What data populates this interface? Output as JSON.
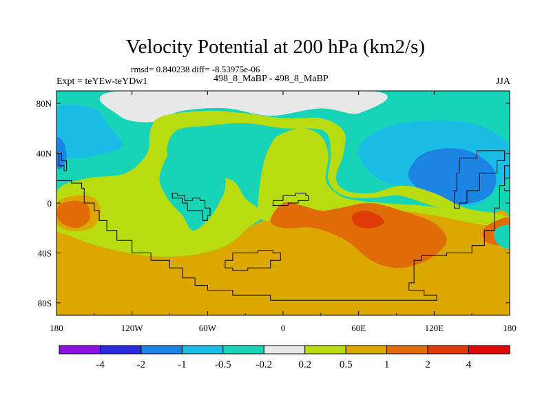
{
  "figure": {
    "title": "Velocity Potential at 200 hPa (km2/s)",
    "stats": "rmsd= 0.840238 diff= -8.53975e-06",
    "experiment": "Expt = teYEw-teYDw1",
    "cases": "498_8_MaBP - 498_8_MaBP",
    "season": "JJA"
  },
  "chart_data": {
    "type": "heatmap",
    "title": "Velocity Potential at 200 hPa (km2/s)",
    "projection": "cylindrical equidistant",
    "xlim": [
      -180,
      180
    ],
    "ylim": [
      -90,
      90
    ],
    "x_ticks": [
      {
        "value": -180,
        "label": "180"
      },
      {
        "value": -120,
        "label": "120W"
      },
      {
        "value": -60,
        "label": "60W"
      },
      {
        "value": 0,
        "label": "0"
      },
      {
        "value": 60,
        "label": "60E"
      },
      {
        "value": 120,
        "label": "120E"
      },
      {
        "value": 180,
        "label": "180"
      }
    ],
    "y_ticks": [
      {
        "value": 80,
        "label": "80N"
      },
      {
        "value": 40,
        "label": "40N"
      },
      {
        "value": 0,
        "label": "0"
      },
      {
        "value": -40,
        "label": "40S"
      },
      {
        "value": -80,
        "label": "80S"
      }
    ],
    "contour_levels": [
      -4,
      -2,
      -1,
      -0.5,
      -0.2,
      0.2,
      0.5,
      1,
      2,
      4
    ],
    "colorbar_labels": [
      "-4",
      "-2",
      "-1",
      "-0.5",
      "-0.2",
      "0.2",
      "0.5",
      "1",
      "2",
      "4"
    ],
    "colorbar_colors": [
      "#8a11e6",
      "#2a2ae0",
      "#1c85e3",
      "#1bbde6",
      "#17d4b8",
      "#e8e8e8",
      "#b8dc10",
      "#dca800",
      "#e06c08",
      "#e03a06",
      "#e00808"
    ],
    "background_level": -0.5,
    "regions": [
      {
        "id": "neg-pole",
        "level": -0.2,
        "points": [
          [
            -130,
            90
          ],
          [
            -130,
            70
          ],
          [
            -105,
            65
          ],
          [
            -80,
            74
          ],
          [
            -45,
            76
          ],
          [
            -10,
            70
          ],
          [
            30,
            76
          ],
          [
            60,
            72
          ],
          [
            70,
            90
          ]
        ]
      },
      {
        "id": "neg-npac",
        "level": -1,
        "points": [
          [
            -180,
            76
          ],
          [
            -150,
            76
          ],
          [
            -140,
            64
          ],
          [
            -128,
            46
          ],
          [
            -150,
            38
          ],
          [
            -170,
            36
          ],
          [
            -180,
            40
          ]
        ]
      },
      {
        "id": "neg-npac-core",
        "level": -2,
        "points": [
          [
            -180,
            52
          ],
          [
            -174,
            48
          ],
          [
            -172,
            36
          ],
          [
            -176,
            28
          ],
          [
            -180,
            30
          ]
        ]
      },
      {
        "id": "neg-asia-outer",
        "level": -0.5,
        "points": [
          [
            48,
            62
          ],
          [
            90,
            70
          ],
          [
            125,
            72
          ],
          [
            165,
            70
          ],
          [
            180,
            60
          ],
          [
            180,
            -6
          ],
          [
            150,
            -14
          ],
          [
            110,
            -4
          ],
          [
            82,
            4
          ],
          [
            62,
            14
          ],
          [
            52,
            34
          ]
        ]
      },
      {
        "id": "neg-asia",
        "level": -1,
        "points": [
          [
            62,
            48
          ],
          [
            85,
            62
          ],
          [
            118,
            66
          ],
          [
            150,
            64
          ],
          [
            172,
            54
          ],
          [
            180,
            44
          ],
          [
            180,
            22
          ],
          [
            168,
            12
          ],
          [
            152,
            -2
          ],
          [
            128,
            2
          ],
          [
            100,
            10
          ],
          [
            75,
            20
          ],
          [
            62,
            34
          ]
        ]
      },
      {
        "id": "neg-asia-core",
        "level": -2,
        "points": [
          [
            102,
            30
          ],
          [
            112,
            40
          ],
          [
            132,
            44
          ],
          [
            152,
            40
          ],
          [
            168,
            26
          ],
          [
            166,
            8
          ],
          [
            150,
            0
          ],
          [
            130,
            0
          ],
          [
            110,
            10
          ],
          [
            100,
            20
          ]
        ]
      },
      {
        "id": "s-hemi",
        "level": 0.5,
        "points": [
          [
            -180,
            -20
          ],
          [
            -180,
            -90
          ],
          [
            180,
            -90
          ],
          [
            180,
            -14
          ],
          [
            165,
            -8
          ],
          [
            150,
            -12
          ],
          [
            118,
            -6
          ],
          [
            80,
            -2
          ],
          [
            50,
            -4
          ],
          [
            30,
            -12
          ],
          [
            0,
            -10
          ],
          [
            -10,
            -12
          ],
          [
            -28,
            -20
          ],
          [
            -45,
            -34
          ],
          [
            -75,
            -42
          ],
          [
            -110,
            -42
          ],
          [
            -145,
            -35
          ],
          [
            -170,
            -26
          ]
        ]
      },
      {
        "id": "white-arc",
        "level": 0.2,
        "points": [
          [
            -155,
            20
          ],
          [
            -125,
            24
          ],
          [
            -108,
            40
          ],
          [
            -105,
            60
          ],
          [
            -95,
            70
          ],
          [
            -60,
            74
          ],
          [
            -30,
            72
          ],
          [
            0,
            68
          ],
          [
            30,
            68
          ],
          [
            48,
            58
          ],
          [
            48,
            40
          ],
          [
            42,
            20
          ],
          [
            50,
            10
          ],
          [
            70,
            8
          ],
          [
            95,
            14
          ],
          [
            120,
            8
          ],
          [
            145,
            -4
          ],
          [
            168,
            -8
          ],
          [
            180,
            -12
          ],
          [
            180,
            -16
          ],
          [
            166,
            -12
          ],
          [
            145,
            -10
          ],
          [
            118,
            -2
          ],
          [
            92,
            6
          ],
          [
            70,
            4
          ],
          [
            48,
            6
          ],
          [
            36,
            18
          ],
          [
            38,
            40
          ],
          [
            32,
            58
          ],
          [
            0,
            60
          ],
          [
            -30,
            64
          ],
          [
            -60,
            62
          ],
          [
            -85,
            58
          ],
          [
            -92,
            40
          ],
          [
            -80,
            24
          ],
          [
            -60,
            22
          ],
          [
            -40,
            18
          ],
          [
            -30,
            4
          ],
          [
            -20,
            -4
          ],
          [
            -15,
            -10
          ],
          [
            -28,
            -20
          ],
          [
            -45,
            -34
          ],
          [
            -75,
            -42
          ],
          [
            -110,
            -42
          ],
          [
            -145,
            -35
          ],
          [
            -170,
            -26
          ],
          [
            -180,
            -20
          ],
          [
            -180,
            -6
          ],
          [
            -178,
            12
          ]
        ]
      },
      {
        "id": "cyan-lobe",
        "level": -0.5,
        "points": [
          [
            -85,
            46
          ],
          [
            -62,
            44
          ],
          [
            -48,
            30
          ],
          [
            -46,
            12
          ],
          [
            -52,
            -2
          ],
          [
            -60,
            -14
          ],
          [
            -72,
            -22
          ],
          [
            -80,
            -10
          ],
          [
            -92,
            4
          ],
          [
            -98,
            22
          ]
        ]
      },
      {
        "id": "green-tongue",
        "level": 0.2,
        "points": [
          [
            -20,
            -4
          ],
          [
            -16,
            30
          ],
          [
            -8,
            50
          ],
          [
            0,
            56
          ],
          [
            15,
            60
          ],
          [
            30,
            54
          ],
          [
            36,
            38
          ],
          [
            34,
            18
          ],
          [
            45,
            6
          ],
          [
            60,
            2
          ],
          [
            80,
            0
          ],
          [
            110,
            -2
          ],
          [
            140,
            -6
          ],
          [
            180,
            -12
          ],
          [
            180,
            -20
          ],
          [
            150,
            -16
          ],
          [
            120,
            -10
          ],
          [
            90,
            -6
          ],
          [
            60,
            -8
          ],
          [
            35,
            -12
          ],
          [
            15,
            -14
          ],
          [
            0,
            -12
          ],
          [
            -15,
            -14
          ]
        ]
      },
      {
        "id": "green-ring-africa",
        "level": 0.2,
        "points": [
          [
            -180,
            4
          ],
          [
            -160,
            10
          ],
          [
            -145,
            10
          ],
          [
            -135,
            0
          ],
          [
            -140,
            -16
          ],
          [
            -160,
            -24
          ],
          [
            -180,
            -22
          ]
        ]
      },
      {
        "id": "orange-outer",
        "level": 0.5,
        "points": [
          [
            -180,
            0
          ],
          [
            -165,
            6
          ],
          [
            -150,
            4
          ],
          [
            -145,
            -8
          ],
          [
            -152,
            -20
          ],
          [
            -170,
            -22
          ],
          [
            -180,
            -16
          ]
        ]
      },
      {
        "id": "orange-africa",
        "level": 1,
        "points": [
          [
            -178,
            -2
          ],
          [
            -165,
            2
          ],
          [
            -155,
            -2
          ],
          [
            -154,
            -14
          ],
          [
            -165,
            -20
          ],
          [
            -178,
            -14
          ]
        ]
      },
      {
        "id": "orange-hub",
        "level": 1,
        "points": [
          [
            -10,
            -14
          ],
          [
            0,
            0
          ],
          [
            15,
            -2
          ],
          [
            30,
            -6
          ],
          [
            45,
            -4
          ],
          [
            70,
            0
          ],
          [
            100,
            -8
          ],
          [
            120,
            -16
          ],
          [
            130,
            -28
          ],
          [
            125,
            -38
          ],
          [
            110,
            -48
          ],
          [
            90,
            -52
          ],
          [
            70,
            -46
          ],
          [
            50,
            -30
          ],
          [
            25,
            -20
          ],
          [
            0,
            -20
          ]
        ]
      },
      {
        "id": "red-core",
        "level": 2,
        "points": [
          [
            55,
            -10
          ],
          [
            65,
            -6
          ],
          [
            76,
            -10
          ],
          [
            80,
            -16
          ],
          [
            70,
            -20
          ],
          [
            58,
            -18
          ]
        ]
      },
      {
        "id": "orange-patch",
        "level": 0.5,
        "points": [
          [
            -30,
            -34
          ],
          [
            -10,
            -30
          ],
          [
            10,
            -36
          ],
          [
            12,
            -46
          ],
          [
            0,
            -54
          ],
          [
            -20,
            -54
          ],
          [
            -32,
            -46
          ]
        ]
      },
      {
        "id": "orange-east",
        "level": 1,
        "points": [
          [
            160,
            -20
          ],
          [
            175,
            -12
          ],
          [
            180,
            -14
          ],
          [
            180,
            -30
          ],
          [
            172,
            -34
          ],
          [
            160,
            -30
          ]
        ]
      },
      {
        "id": "cyan-ne-lobe",
        "level": -0.5,
        "points": [
          [
            168,
            -22
          ],
          [
            180,
            -18
          ],
          [
            180,
            -36
          ],
          [
            170,
            -32
          ]
        ]
      }
    ],
    "coastlines": [
      [
        [
          -180,
          18
        ],
        [
          -168,
          16
        ],
        [
          -160,
          12
        ],
        [
          -158,
          0
        ],
        [
          -150,
          -6
        ],
        [
          -146,
          -14
        ],
        [
          -140,
          -22
        ],
        [
          -132,
          -30
        ],
        [
          -120,
          -40
        ],
        [
          -105,
          -46
        ],
        [
          -90,
          -52
        ],
        [
          -80,
          -60
        ],
        [
          -70,
          -66
        ],
        [
          -60,
          -70
        ],
        [
          -40,
          -74
        ],
        [
          -10,
          -78
        ],
        [
          30,
          -78
        ],
        [
          70,
          -78
        ],
        [
          100,
          -78
        ],
        [
          120,
          -78
        ],
        [
          122,
          -74
        ],
        [
          112,
          -70
        ],
        [
          100,
          -64
        ],
        [
          104,
          -46
        ],
        [
          110,
          -42
        ],
        [
          130,
          -40
        ],
        [
          150,
          -34
        ],
        [
          160,
          -22
        ],
        [
          168,
          -4
        ],
        [
          172,
          14
        ],
        [
          176,
          30
        ],
        [
          180,
          24
        ]
      ],
      [
        [
          -88,
          4
        ],
        [
          -80,
          0
        ],
        [
          -76,
          -6
        ],
        [
          -70,
          -6
        ],
        [
          -64,
          -14
        ],
        [
          -60,
          -10
        ],
        [
          -58,
          -4
        ],
        [
          -62,
          2
        ],
        [
          -66,
          4
        ],
        [
          -72,
          2
        ],
        [
          -78,
          6
        ],
        [
          -84,
          8
        ],
        [
          -88,
          4
        ]
      ],
      [
        [
          -40,
          -40
        ],
        [
          -20,
          -38
        ],
        [
          -8,
          -40
        ],
        [
          -2,
          -46
        ],
        [
          -10,
          -52
        ],
        [
          -28,
          -54
        ],
        [
          -40,
          -52
        ],
        [
          -46,
          -46
        ],
        [
          -40,
          -40
        ]
      ],
      [
        [
          -8,
          2
        ],
        [
          0,
          6
        ],
        [
          10,
          8
        ],
        [
          18,
          6
        ],
        [
          20,
          2
        ],
        [
          12,
          0
        ],
        [
          4,
          -2
        ],
        [
          -8,
          2
        ]
      ],
      [
        [
          140,
          36
        ],
        [
          154,
          42
        ],
        [
          170,
          42
        ],
        [
          176,
          34
        ],
        [
          170,
          24
        ],
        [
          156,
          10
        ],
        [
          146,
          0
        ],
        [
          140,
          -4
        ],
        [
          136,
          10
        ],
        [
          138,
          24
        ],
        [
          140,
          36
        ]
      ],
      [
        [
          -180,
          40
        ],
        [
          -178,
          30
        ],
        [
          -174,
          26
        ],
        [
          -172,
          34
        ],
        [
          -176,
          40
        ],
        [
          -180,
          40
        ]
      ],
      [
        [
          176,
          20
        ],
        [
          180,
          22
        ],
        [
          180,
          10
        ],
        [
          176,
          12
        ]
      ]
    ]
  }
}
